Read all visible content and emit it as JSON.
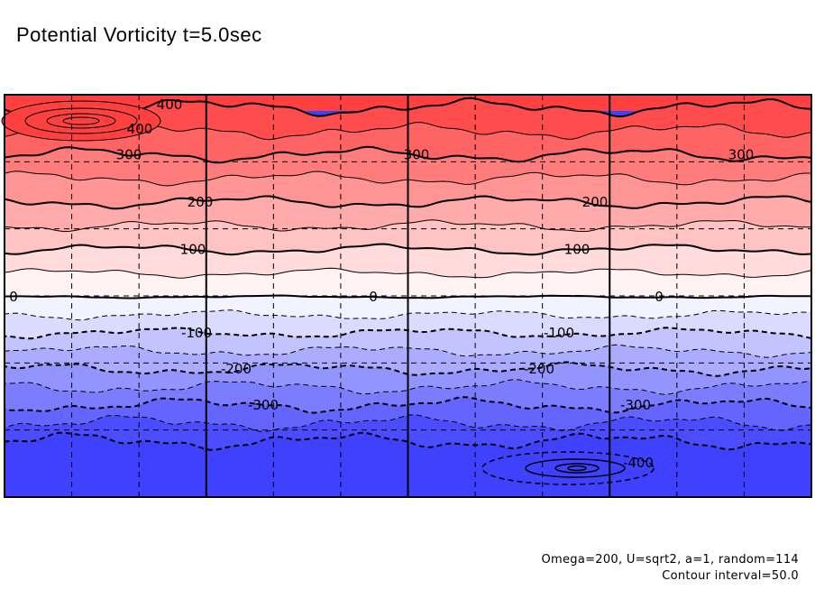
{
  "title": "Potential Vorticity t=5.0sec",
  "footer": {
    "params": "Omega=200, U=sqrt2, a=1, random=114",
    "interval": "Contour interval=50.0"
  },
  "chart_data": {
    "type": "heatmap",
    "title": "Potential Vorticity t=5.0sec",
    "variable": "Potential Vorticity",
    "contour_interval": 50.0,
    "contour_levels": [
      -400,
      -350,
      -300,
      -250,
      -200,
      -150,
      -100,
      -50,
      0,
      50,
      100,
      150,
      200,
      250,
      300,
      350,
      400
    ],
    "negative_contours": "dashed",
    "band_colors": {
      "top": "#ff4040",
      "bottom": "#4040ff",
      "center": "#ffffff"
    },
    "grid": true,
    "labels": [
      {
        "text": "400"
      },
      {
        "text": "400"
      },
      {
        "text": "300"
      },
      {
        "text": "300"
      },
      {
        "text": "300"
      },
      {
        "text": "200"
      },
      {
        "text": "200"
      },
      {
        "text": "100"
      },
      {
        "text": "100"
      },
      {
        "text": "0"
      },
      {
        "text": "0"
      },
      {
        "text": "0"
      },
      {
        "text": "-100"
      },
      {
        "text": "-100"
      },
      {
        "text": "-200"
      },
      {
        "text": "-200"
      },
      {
        "text": "-300"
      },
      {
        "text": "-300"
      },
      {
        "text": "-400"
      }
    ]
  }
}
